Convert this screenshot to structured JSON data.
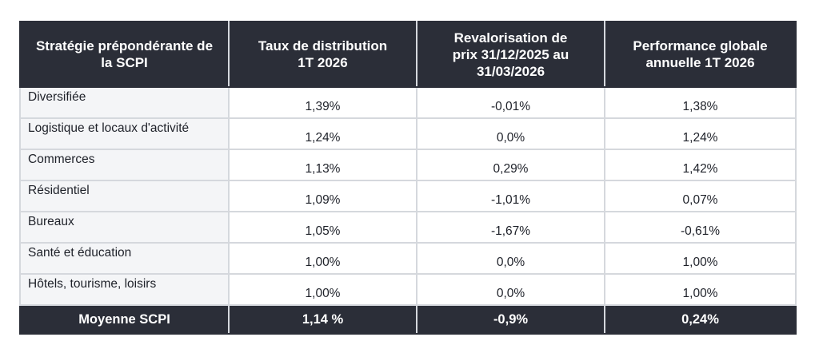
{
  "table": {
    "headers": [
      "Stratégie prépondérante de la SCPI",
      "Taux de distribution 1T 2026",
      "Revalorisation de prix 31/12/2025 au 31/03/2026",
      "Performance globale annuelle 1T 2026"
    ],
    "rows": [
      {
        "strategy": "Diversifiée",
        "distribution": "1,39%",
        "revalorisation": "-0,01%",
        "performance": "1,38%"
      },
      {
        "strategy": "Logistique et locaux d'activité",
        "distribution": "1,24%",
        "revalorisation": "0,0%",
        "performance": "1,24%"
      },
      {
        "strategy": "Commerces",
        "distribution": "1,13%",
        "revalorisation": "0,29%",
        "performance": "1,42%"
      },
      {
        "strategy": "Résidentiel",
        "distribution": "1,09%",
        "revalorisation": "-1,01%",
        "performance": "0,07%"
      },
      {
        "strategy": "Bureaux",
        "distribution": "1,05%",
        "revalorisation": "-1,67%",
        "performance": "-0,61%"
      },
      {
        "strategy": "Santé et éducation",
        "distribution": "1,00%",
        "revalorisation": "0,0%",
        "performance": "1,00%"
      },
      {
        "strategy": "Hôtels, tourisme, loisirs",
        "distribution": "1,00%",
        "revalorisation": "0,0%",
        "performance": "1,00%"
      }
    ],
    "footer": {
      "strategy": "Moyenne SCPI",
      "distribution": "1,14 %",
      "revalorisation": "-0,9%",
      "performance": "0,24%"
    }
  },
  "colors": {
    "header_bg": "#2b2e38",
    "label_bg": "#f4f5f7",
    "grid": "#d5d8dd"
  }
}
